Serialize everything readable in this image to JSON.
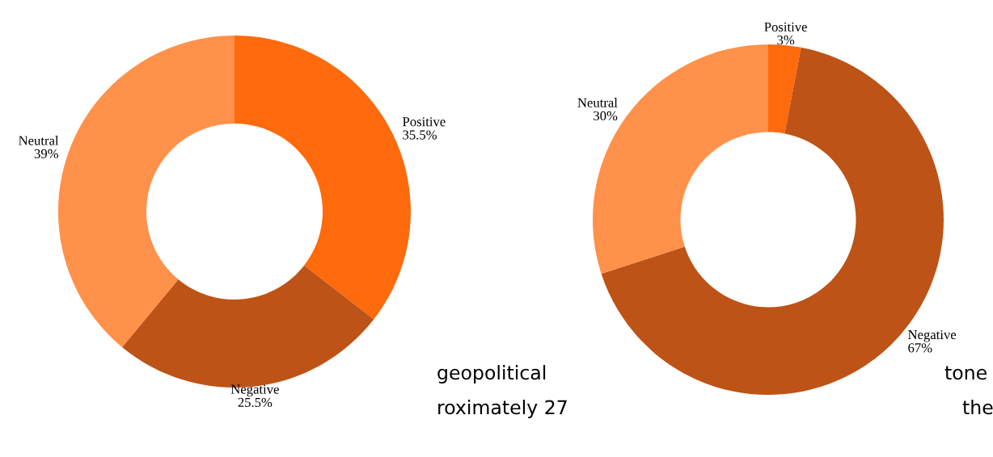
{
  "chart_data": [
    {
      "type": "donut",
      "categories": [
        "Positive",
        "Negative",
        "Neutral"
      ],
      "values": [
        35.5,
        25.5,
        39
      ],
      "colors": [
        "#ff6a0d",
        "#bd5316",
        "#ff914a"
      ],
      "value_labels": [
        "35.5%",
        "25.5%",
        "39%"
      ],
      "annotations": [
        "geopolitical",
        "roximately 27"
      ]
    },
    {
      "type": "donut",
      "categories": [
        "Positive",
        "Negative",
        "Neutral"
      ],
      "values": [
        3,
        67,
        30
      ],
      "colors": [
        "#ff6a0d",
        "#bd5316",
        "#ff914a"
      ],
      "value_labels": [
        "3%",
        "67%",
        "30%"
      ],
      "annotations": [
        "tone",
        "the"
      ]
    }
  ]
}
